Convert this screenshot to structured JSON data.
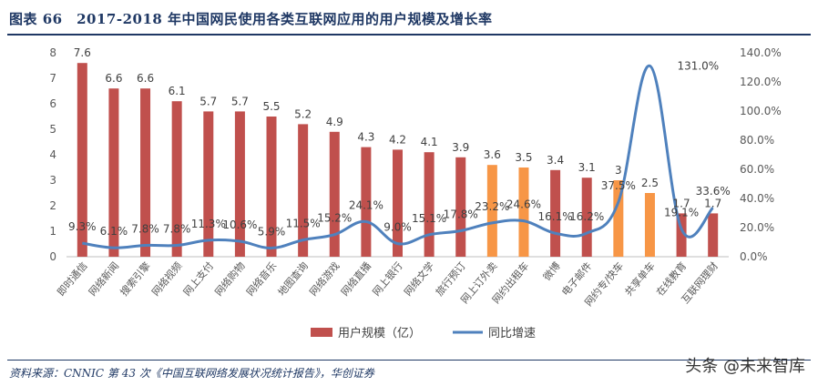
{
  "title": "图表 66　2017-2018 年中国网民使用各类互联网应用的用户规模及增长率",
  "source": "资料来源：CNNIC 第 43 次《中国互联网络发展状况统计报告》，华创证券",
  "watermark": "头条 @未来智库",
  "colors": {
    "bar_red": "#c0504d",
    "bar_orange": "#f79646",
    "line_blue": "#4f81bd",
    "title_navy": "#1f3864"
  },
  "chart_data": {
    "type": "bar",
    "categories": [
      "即时通信",
      "网络新闻",
      "搜索引擎",
      "网络视频",
      "网上支付",
      "网络购物",
      "网络音乐",
      "地图查询",
      "网络游戏",
      "网络直播",
      "网上银行",
      "网络文学",
      "旅行预订",
      "网上订外卖",
      "网约出租车",
      "微博",
      "电子邮件",
      "网约专/快车",
      "共享单车",
      "在线教育",
      "互联网理财"
    ],
    "series": [
      {
        "name": "用户规模（亿）",
        "axis": "left",
        "type": "bar",
        "values": [
          7.6,
          6.6,
          6.6,
          6.1,
          5.7,
          5.7,
          5.5,
          5.2,
          4.9,
          4.3,
          4.2,
          4.1,
          3.9,
          3.6,
          3.5,
          3.4,
          3.1,
          3,
          2.5,
          1.7,
          1.7
        ],
        "labels": [
          "7.6",
          "6.6",
          "6.6",
          "6.1",
          "5.7",
          "5.7",
          "5.5",
          "5.2",
          "4.9",
          "4.3",
          "4.2",
          "4.1",
          "3.9",
          "3.6",
          "3.5",
          "3.4",
          "3.1",
          "3",
          "2.5",
          "1.7",
          "1.7"
        ],
        "highlight_indices": [
          13,
          14,
          17,
          18
        ]
      },
      {
        "name": "同比增速",
        "axis": "right",
        "type": "line",
        "values": [
          9.3,
          6.1,
          7.8,
          7.8,
          11.3,
          10.6,
          5.9,
          11.5,
          15.2,
          24.1,
          9.0,
          15.1,
          17.8,
          23.2,
          24.6,
          16.1,
          16.2,
          37.5,
          131.0,
          19.1,
          33.6
        ],
        "labels": [
          "9.3%",
          "6.1%",
          "7.8%",
          "7.8%",
          "11.3%",
          "10.6%",
          "5.9%",
          "11.5%",
          "15.2%",
          "24.1%",
          "9.0%",
          "15.1%",
          "17.8%",
          "23.2%",
          "24.6%",
          "16.1%",
          "16.2%",
          "37.5%",
          "131.0%",
          "19.1%",
          "33.6%"
        ]
      }
    ],
    "y_left": {
      "min": 0,
      "max": 8,
      "ticks": [
        "0",
        "1",
        "2",
        "3",
        "4",
        "5",
        "6",
        "7",
        "8"
      ]
    },
    "y_right": {
      "min": 0,
      "max": 140,
      "ticks": [
        "0.0%",
        "20.0%",
        "40.0%",
        "60.0%",
        "80.0%",
        "100.0%",
        "120.0%",
        "140.0%"
      ]
    },
    "grid": false,
    "legend_position": "bottom"
  }
}
